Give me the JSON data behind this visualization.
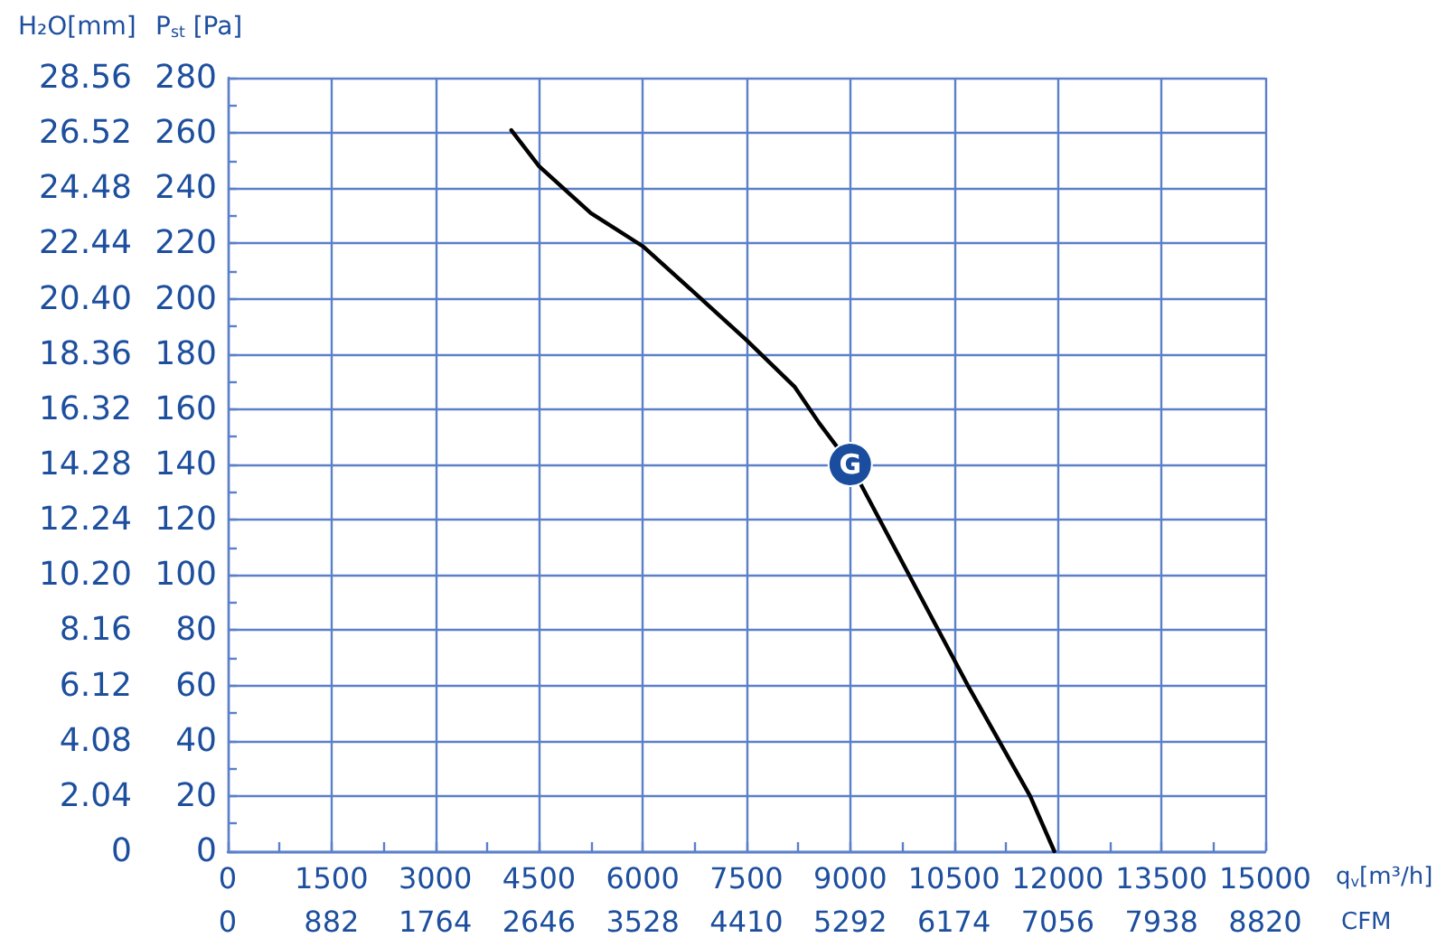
{
  "chart_data": {
    "type": "line",
    "xlabel": "q$_{v}$[m³/h]",
    "x2label": "CFM",
    "ylabel": "P$_{st}$ [Pa]",
    "y2label": "H₂O[mm]",
    "x": [
      4100,
      4500,
      5250,
      6000,
      6800,
      7500,
      8200,
      8550,
      9000,
      9850,
      10700,
      11600,
      11950
    ],
    "values": [
      261,
      248,
      231,
      219,
      201,
      185,
      168,
      155,
      140,
      100,
      60,
      20,
      0
    ],
    "color": "#000000",
    "marker": "none",
    "xlim": [
      0,
      15000
    ],
    "xticks": [
      0,
      {
        "value": 750,
        "label": null
      },
      1500,
      {
        "value": 2250,
        "label": null
      },
      3000,
      {
        "value": 3750,
        "label": null
      },
      4500,
      {
        "value": 5250,
        "label": null
      },
      6000,
      {
        "value": 6750,
        "label": null
      },
      7500,
      {
        "value": 8250,
        "label": null
      },
      9000,
      {
        "value": 9750,
        "label": null
      },
      10500,
      {
        "value": 11250,
        "label": null
      },
      12000,
      {
        "value": 12750,
        "label": null
      },
      13500,
      {
        "value": 14250,
        "label": null
      },
      15000
    ],
    "x2lim": [
      0,
      8820
    ],
    "x2ticks": [
      0,
      882,
      1764,
      2646,
      3528,
      4410,
      5292,
      6174,
      7056,
      7938,
      8820
    ],
    "ylim": [
      0,
      280
    ],
    "yticks": [
      0,
      {
        "value": 10,
        "label": null
      },
      20,
      {
        "value": 30,
        "label": null
      },
      40,
      {
        "value": 50,
        "label": null
      },
      60,
      {
        "value": 70,
        "label": null
      },
      80,
      {
        "value": 90,
        "label": null
      },
      100,
      {
        "value": 110,
        "label": null
      },
      120,
      {
        "value": 130,
        "label": null
      },
      140,
      {
        "value": 150,
        "label": null
      },
      160,
      {
        "value": 170,
        "label": null
      },
      180,
      {
        "value": 190,
        "label": null
      },
      200,
      {
        "value": 210,
        "label": null
      },
      220,
      {
        "value": 230,
        "label": null
      },
      240,
      {
        "value": 250,
        "label": null
      },
      260,
      {
        "value": 270,
        "label": null
      },
      280
    ],
    "y2lim": [
      0,
      28.56
    ],
    "y2ticks": [
      0,
      2.04,
      4.08,
      6.12,
      8.16,
      {
        "value": 10.2,
        "label": "10.20"
      },
      12.24,
      14.28,
      16.32,
      18.36,
      {
        "value": 20.4,
        "label": "20.40"
      },
      22.44,
      24.48,
      26.52,
      28.56
    ],
    "grid": true,
    "annotations": [
      {
        "text": "G",
        "x": 9000,
        "y": 140
      }
    ]
  }
}
